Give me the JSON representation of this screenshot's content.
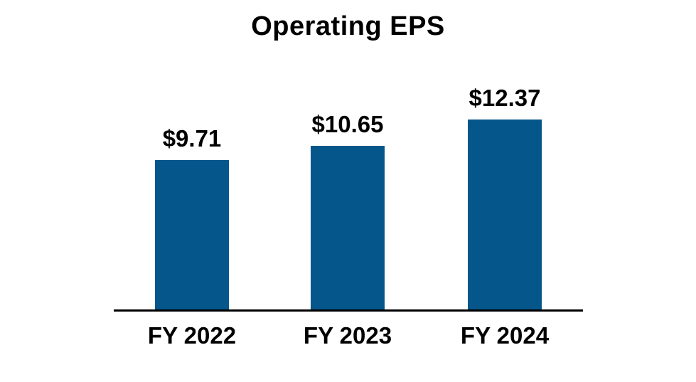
{
  "page": {
    "background": "#FFFFFF",
    "text_color": "#000000"
  },
  "chart_data": {
    "type": "bar",
    "title": "Operating EPS",
    "categories": [
      "FY 2022",
      "FY 2023",
      "FY 2024"
    ],
    "values": [
      9.71,
      10.65,
      12.37
    ],
    "value_labels": [
      "$9.71",
      "$10.65",
      "$12.37"
    ],
    "bar_color": "#05568B",
    "axis_color": "#000000",
    "ylim": [
      0,
      13
    ],
    "grid": false,
    "legend": "none",
    "y_axis": "hidden",
    "value_labels_position": "above-bars"
  }
}
